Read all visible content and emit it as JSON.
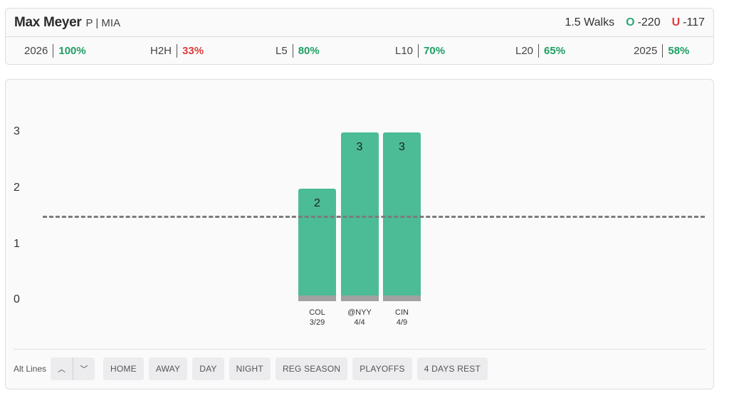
{
  "player": {
    "name": "Max Meyer",
    "meta": "P | MIA"
  },
  "market": {
    "line_label": "1.5 Walks",
    "over_label": "O",
    "over_odds": "-220",
    "under_label": "U",
    "under_odds": "-117"
  },
  "stats": [
    {
      "label": "2026",
      "value": "100%",
      "color": "green"
    },
    {
      "label": "H2H",
      "value": "33%",
      "color": "red"
    },
    {
      "label": "L5",
      "value": "80%",
      "color": "green"
    },
    {
      "label": "L10",
      "value": "70%",
      "color": "green"
    },
    {
      "label": "L20",
      "value": "65%",
      "color": "green"
    },
    {
      "label": "2025",
      "value": "58%",
      "color": "green"
    }
  ],
  "chart_data": {
    "type": "bar",
    "categories": [
      "COL",
      "@NYY",
      "CIN"
    ],
    "dates": [
      "3/29",
      "4/4",
      "4/9"
    ],
    "values": [
      2,
      3,
      3
    ],
    "threshold": 1.5,
    "yticks": [
      "0",
      "1",
      "2",
      "3"
    ],
    "ylim": [
      0,
      3
    ],
    "bar_color": "#4bbc95",
    "line_color": "#7c7c7c"
  },
  "filters": {
    "alt_lines_label": "Alt Lines",
    "alt_up_icon": "chevron-up-icon",
    "alt_down_icon": "chevron-down-icon",
    "alt_up_glyph": "︿",
    "alt_down_glyph": "﹀",
    "chips": [
      "HOME",
      "AWAY",
      "DAY",
      "NIGHT",
      "REG SEASON",
      "PLAYOFFS",
      "4 DAYS REST"
    ]
  }
}
